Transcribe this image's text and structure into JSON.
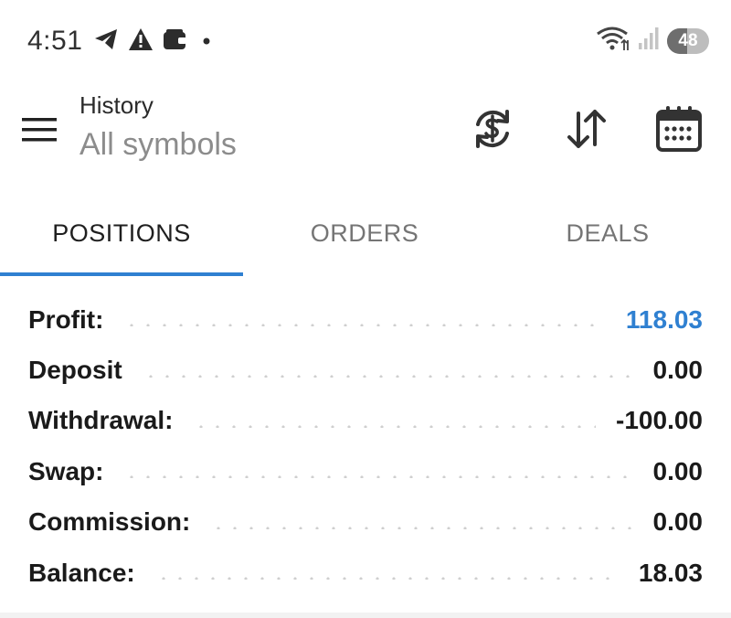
{
  "status_bar": {
    "time": "4:51",
    "battery_level": "48",
    "icons": [
      "telegram-icon",
      "warning-icon",
      "wallet-icon",
      "notification-dot-icon",
      "wifi-icon",
      "signal-icon",
      "battery-icon"
    ]
  },
  "app_bar": {
    "title": "History",
    "subtitle": "All symbols",
    "actions": [
      "currency-exchange-icon",
      "sort-icon",
      "calendar-icon"
    ]
  },
  "tabs": [
    {
      "label": "POSITIONS",
      "active": true
    },
    {
      "label": "ORDERS",
      "active": false
    },
    {
      "label": "DEALS",
      "active": false
    }
  ],
  "summary": {
    "rows": [
      {
        "label": "Profit:",
        "value": "118.03"
      },
      {
        "label": "Deposit",
        "value": "0.00"
      },
      {
        "label": "Withdrawal:",
        "value": "-100.00"
      },
      {
        "label": "Swap:",
        "value": "0.00"
      },
      {
        "label": "Commission:",
        "value": "0.00"
      },
      {
        "label": "Balance:",
        "value": "18.03"
      }
    ]
  },
  "colors": {
    "accent": "#2f80d1",
    "profit_value": "#2f80d1",
    "subtitle": "#8c8c8c",
    "inactive_tab": "#757575"
  }
}
